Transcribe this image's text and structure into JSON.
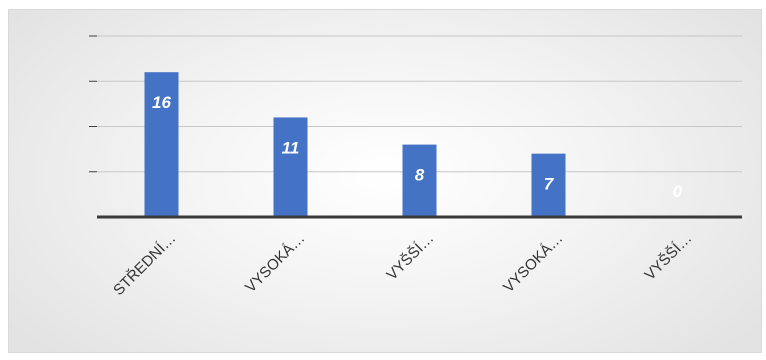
{
  "chart_data": {
    "type": "bar",
    "categories": [
      "STŘEDNÍ…",
      "VYSOKÁ…",
      "VYŠŠÍ…",
      "VYSOKÁ…",
      "VYŠŠÍ…"
    ],
    "values": [
      16,
      11,
      8,
      7,
      0
    ],
    "ylim": [
      0,
      20
    ],
    "ytick_step": 5,
    "ytick_labels_shown": false,
    "grid": true,
    "legend": "none",
    "colors": {
      "bar": "#4472C4",
      "data_label": "#FFFFFF",
      "grid": "#C7C7C7",
      "axis": "#3A3A3A"
    }
  }
}
